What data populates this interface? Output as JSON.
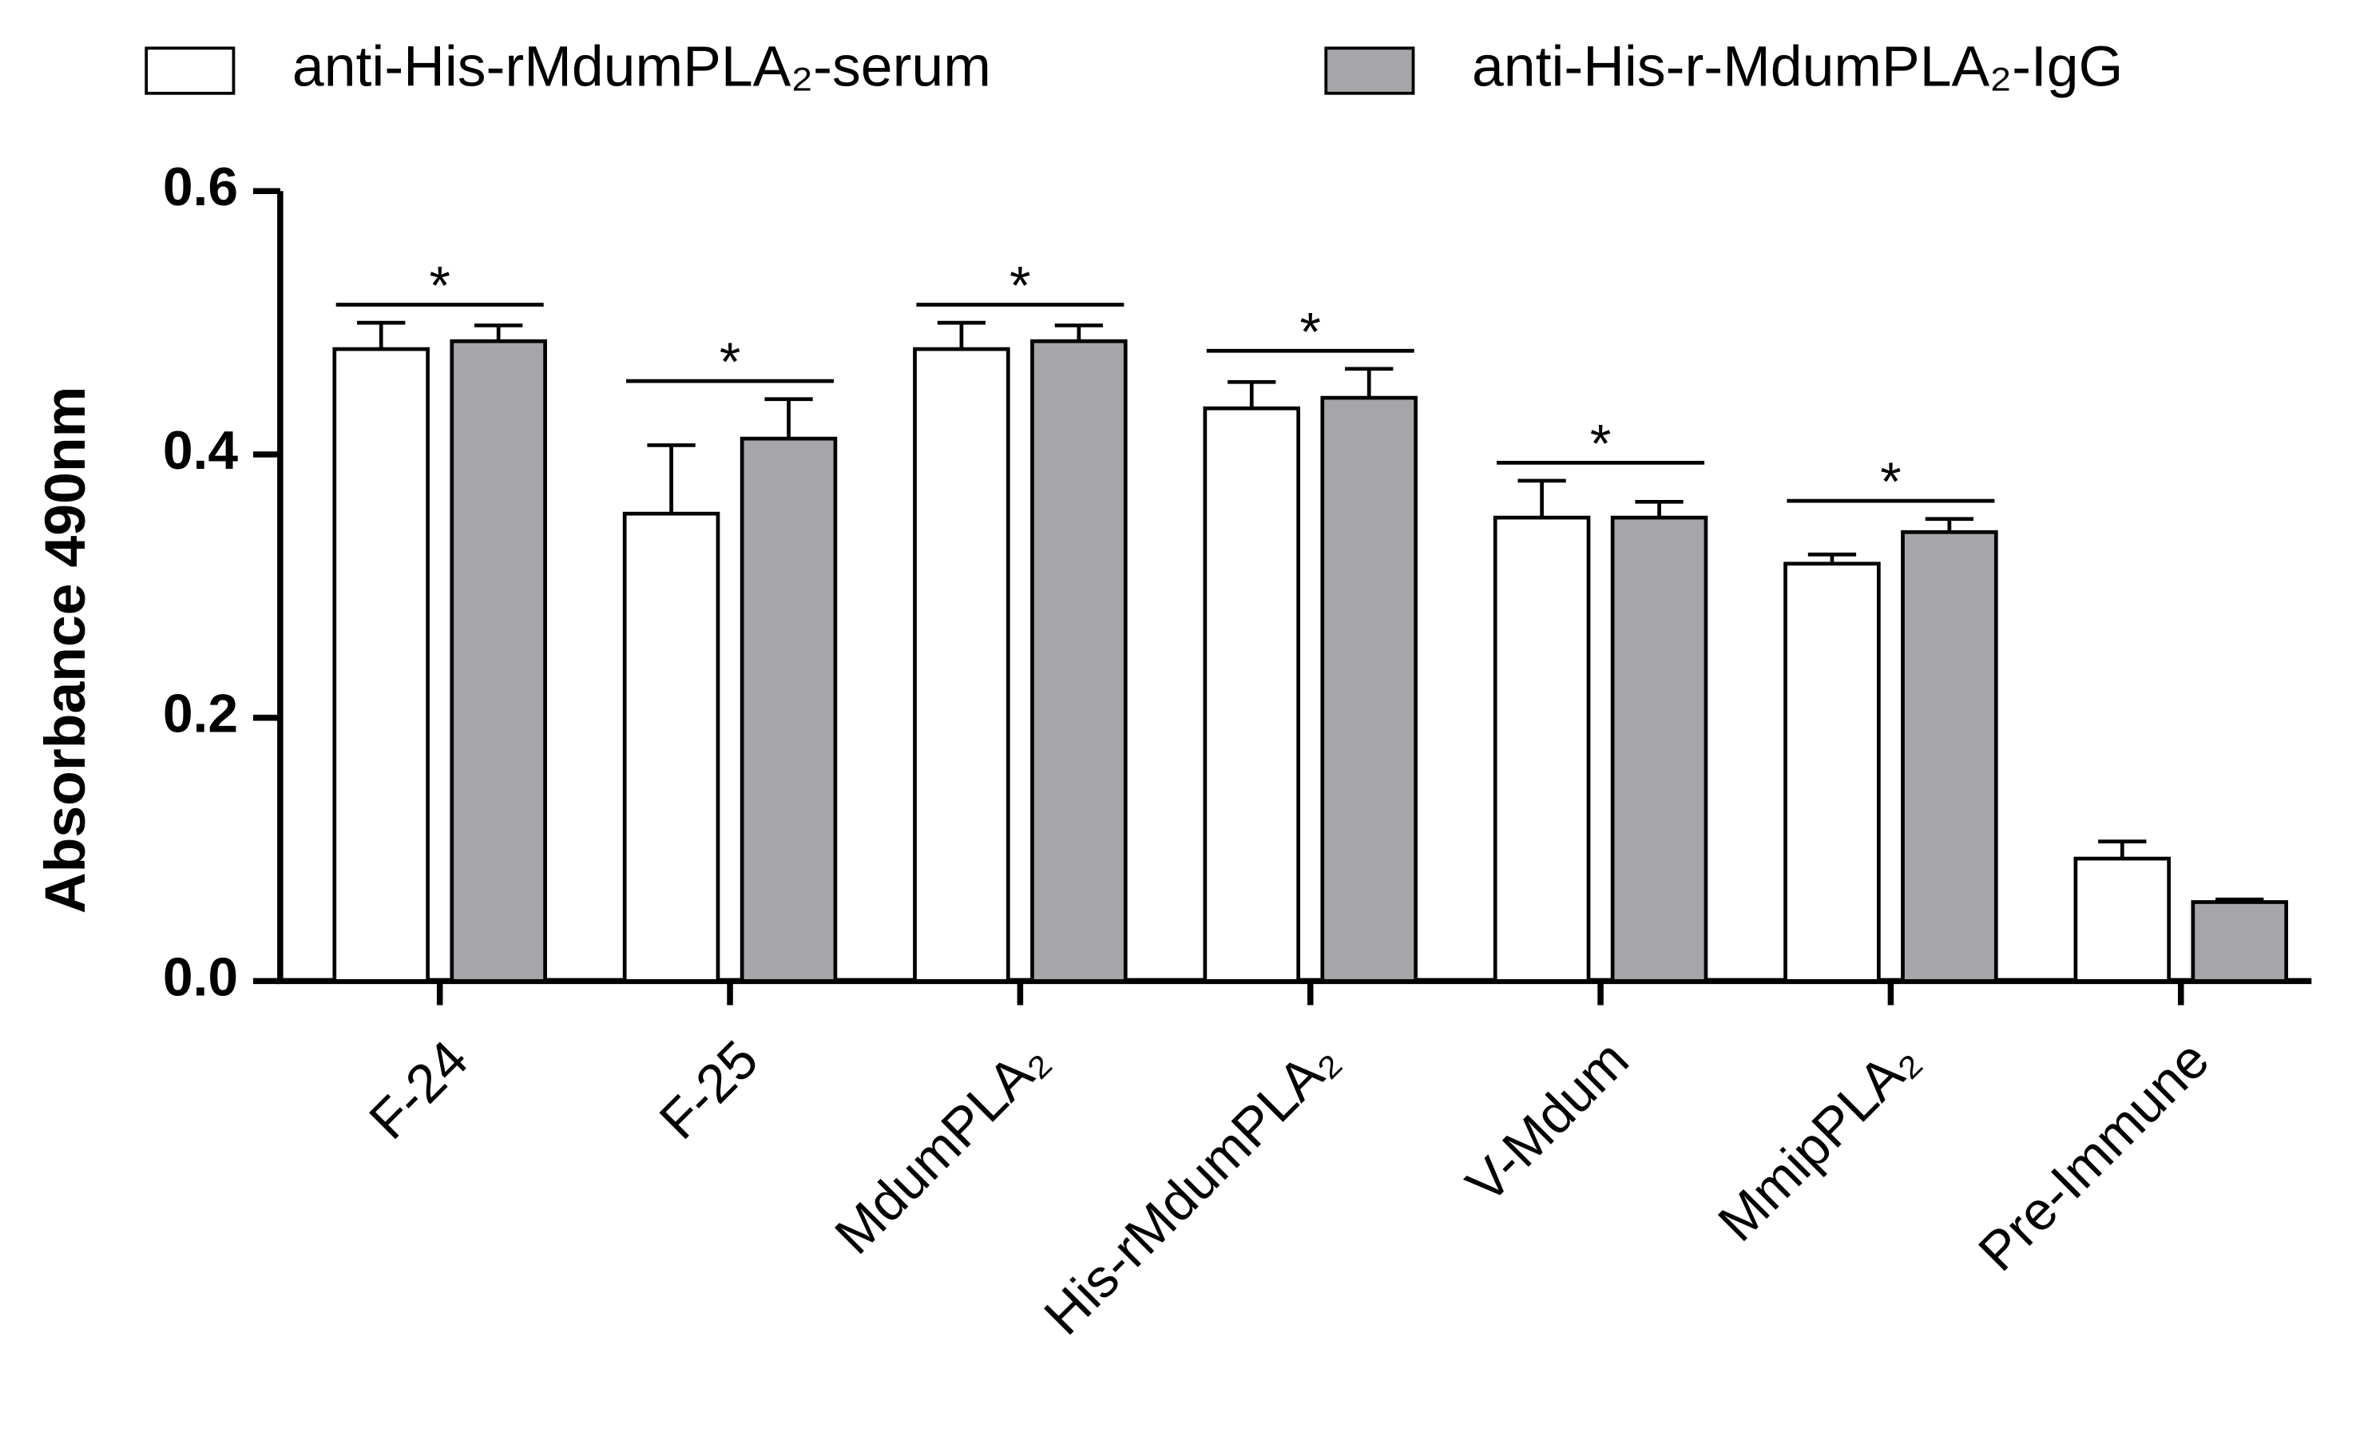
{
  "chart_data": {
    "type": "bar",
    "y_label": "Absorbance 490nm",
    "categories": [
      "F-24",
      "F-25",
      "MdumPLA₂",
      "His-rMdumPLA₂",
      "V-Mdum",
      "MmipPLA₂",
      "Pre-Immune"
    ],
    "series": [
      {
        "name": "anti-His-rMdumPLA₂-serum",
        "color": "#ffffff",
        "values": [
          0.48,
          0.355,
          0.48,
          0.435,
          0.352,
          0.317,
          0.093
        ],
        "errors": [
          0.02,
          0.052,
          0.02,
          0.02,
          0.028,
          0.007,
          0.013
        ]
      },
      {
        "name": "anti-His-r-MdumPLA₂-IgG",
        "color": "#a6a6aa",
        "values": [
          0.486,
          0.412,
          0.486,
          0.443,
          0.352,
          0.341,
          0.06
        ],
        "errors": [
          0.012,
          0.03,
          0.012,
          0.022,
          0.012,
          0.01,
          0.002
        ]
      }
    ],
    "significance": [
      "*",
      "*",
      "*",
      "*",
      "*",
      "*",
      null
    ],
    "ylim": [
      0,
      0.6
    ],
    "yticks": [
      {
        "value": 0,
        "label": "0.0"
      },
      {
        "value": 0.2,
        "label": "0.2"
      },
      {
        "value": 0.4,
        "label": "0.4"
      },
      {
        "value": 0.6,
        "label": "0.6"
      }
    ],
    "legend": "top"
  }
}
